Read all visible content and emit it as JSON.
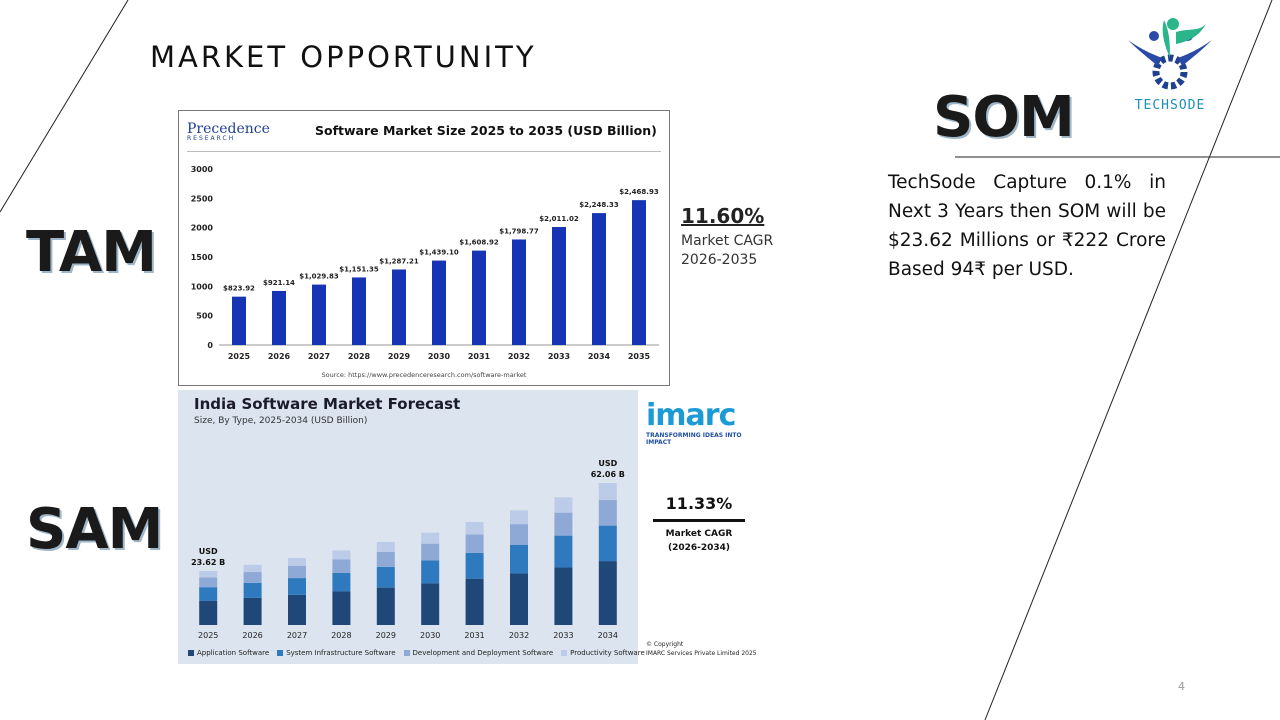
{
  "slide": {
    "title": "MARKET OPPORTUNITY",
    "page_number": "4",
    "labels": {
      "tam": "TAM",
      "sam": "SAM",
      "som": "SOM"
    },
    "som_text": "TechSode Capture 0.1% in Next 3 Years then SOM will be $23.62 Millions or ₹222 Crore Based 94₹ per USD.",
    "logo_text": "TECHSODE",
    "tam_cagr": {
      "value": "11.60%",
      "label_line1": "Market CAGR",
      "label_line2": "2026-2035"
    }
  },
  "chart_data": [
    {
      "type": "bar",
      "title": "Software Market Size 2025 to 2035 (USD Billion)",
      "brand": "Precedence",
      "brand_sub": "RESEARCH",
      "source": "Source: https://www.precedenceresearch.com/software-market",
      "categories": [
        "2025",
        "2026",
        "2027",
        "2028",
        "2029",
        "2030",
        "2031",
        "2032",
        "2033",
        "2034",
        "2035"
      ],
      "values": [
        823.92,
        921.14,
        1029.83,
        1151.35,
        1287.21,
        1439.1,
        1608.92,
        1798.77,
        2011.02,
        2248.33,
        2468.93
      ],
      "data_labels": [
        "$823.92",
        "$921.14",
        "$1,029.83",
        "$1,151.35",
        "$1,287.21",
        "$1,439.10",
        "$1,608.92",
        "$1,798.77",
        "$2,011.02",
        "$2,248.33",
        "$2,468.93"
      ],
      "y_ticks": [
        "0",
        "500",
        "1000",
        "1500",
        "2000",
        "2500",
        "3000"
      ],
      "ylim": [
        0,
        3000
      ],
      "colors": {
        "bar": "#1535b5"
      }
    },
    {
      "type": "bar",
      "stacked": true,
      "title": "India Software Market Forecast",
      "subtitle": "Size, By Type, 2025-2034 (USD Billion)",
      "categories": [
        "2025",
        "2026",
        "2027",
        "2028",
        "2029",
        "2030",
        "2031",
        "2032",
        "2033",
        "2034"
      ],
      "totals": [
        23.62,
        26.3,
        29.3,
        32.6,
        36.3,
        40.4,
        45.0,
        50.1,
        55.8,
        62.06
      ],
      "first_label": [
        "USD",
        "23.62 B"
      ],
      "last_label": [
        "USD",
        "62.06 B"
      ],
      "series": [
        {
          "name": "Application Software",
          "color": "#1f4778",
          "share": 0.45
        },
        {
          "name": "System Infrastructure Software",
          "color": "#2f7abf",
          "share": 0.25
        },
        {
          "name": "Development and Deployment Software",
          "color": "#8fa9d6",
          "share": 0.18
        },
        {
          "name": "Productivity Software",
          "color": "#bccbe8",
          "share": 0.12
        }
      ],
      "brand": "imarc",
      "brand_tag": "TRANSFORMING IDEAS INTO IMPACT",
      "cagr": "11.33%",
      "cagr_label_line1": "Market CAGR",
      "cagr_label_line2": "(2026-2034)",
      "copyright_line1": "© Copyright",
      "copyright_line2": "IMARC Services Private Limited 2025"
    }
  ]
}
